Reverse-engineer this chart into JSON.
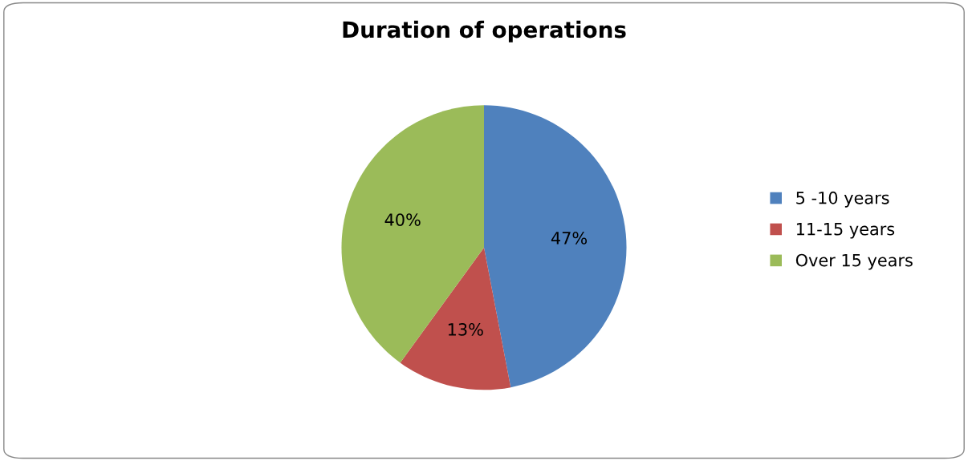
{
  "chart_data": {
    "type": "pie",
    "title": "Duration of operations",
    "categories": [
      "5 -10 years",
      "11-15 years",
      "Over 15 years"
    ],
    "values": [
      47,
      13,
      40
    ],
    "value_labels": [
      "47%",
      "13%",
      "40%"
    ],
    "colors": [
      "#4f81bd",
      "#c0504d",
      "#9bbb59"
    ],
    "legend": "right"
  }
}
